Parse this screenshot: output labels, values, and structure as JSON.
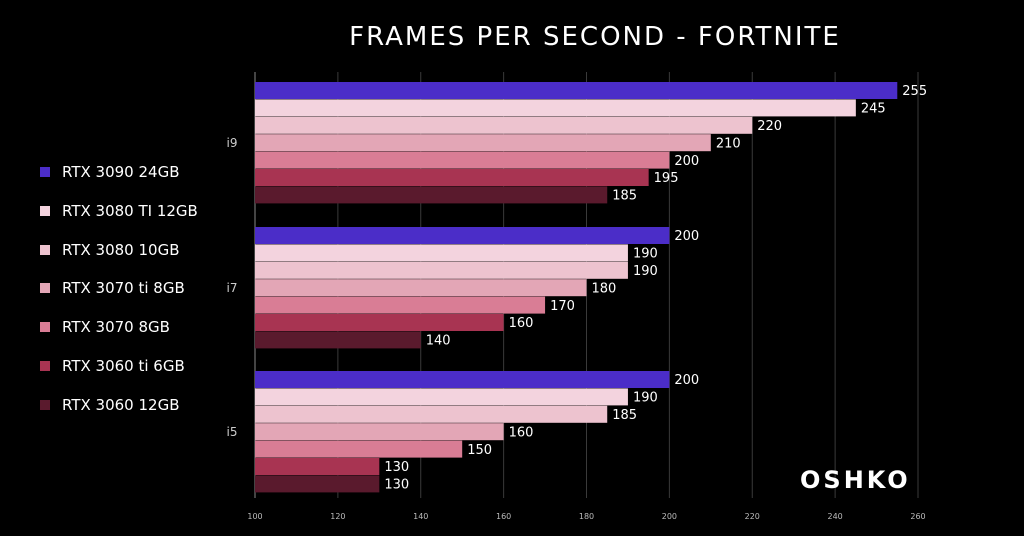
{
  "chart_data": {
    "type": "bar",
    "orientation": "horizontal",
    "title": "FRAMES PER SECOND - FORTNITE",
    "categories": [
      "i9",
      "i7",
      "i5"
    ],
    "xlim": [
      100,
      260
    ],
    "xticks": [
      100,
      120,
      140,
      160,
      180,
      200,
      220,
      240,
      260
    ],
    "grid": true,
    "legend_position": "left",
    "series": [
      {
        "name": "RTX 3090 24GB",
        "color": "#4B2DC8",
        "values": [
          255,
          200,
          200
        ]
      },
      {
        "name": "RTX 3080 TI 12GB",
        "color": "#F3D3DE",
        "values": [
          245,
          190,
          190
        ]
      },
      {
        "name": "RTX 3080 10GB",
        "color": "#EDC3CF",
        "values": [
          220,
          190,
          185
        ]
      },
      {
        "name": "RTX 3070 ti 8GB",
        "color": "#E3A6B6",
        "values": [
          210,
          180,
          160
        ]
      },
      {
        "name": "RTX 3070 8GB",
        "color": "#D97D95",
        "values": [
          200,
          170,
          150
        ]
      },
      {
        "name": "RTX 3060 ti 6GB",
        "color": "#A83452",
        "values": [
          195,
          160,
          130
        ]
      },
      {
        "name": "RTX 3060 12GB",
        "color": "#5A1A2D",
        "values": [
          185,
          140,
          130
        ]
      }
    ]
  },
  "brand": "OSHKO"
}
